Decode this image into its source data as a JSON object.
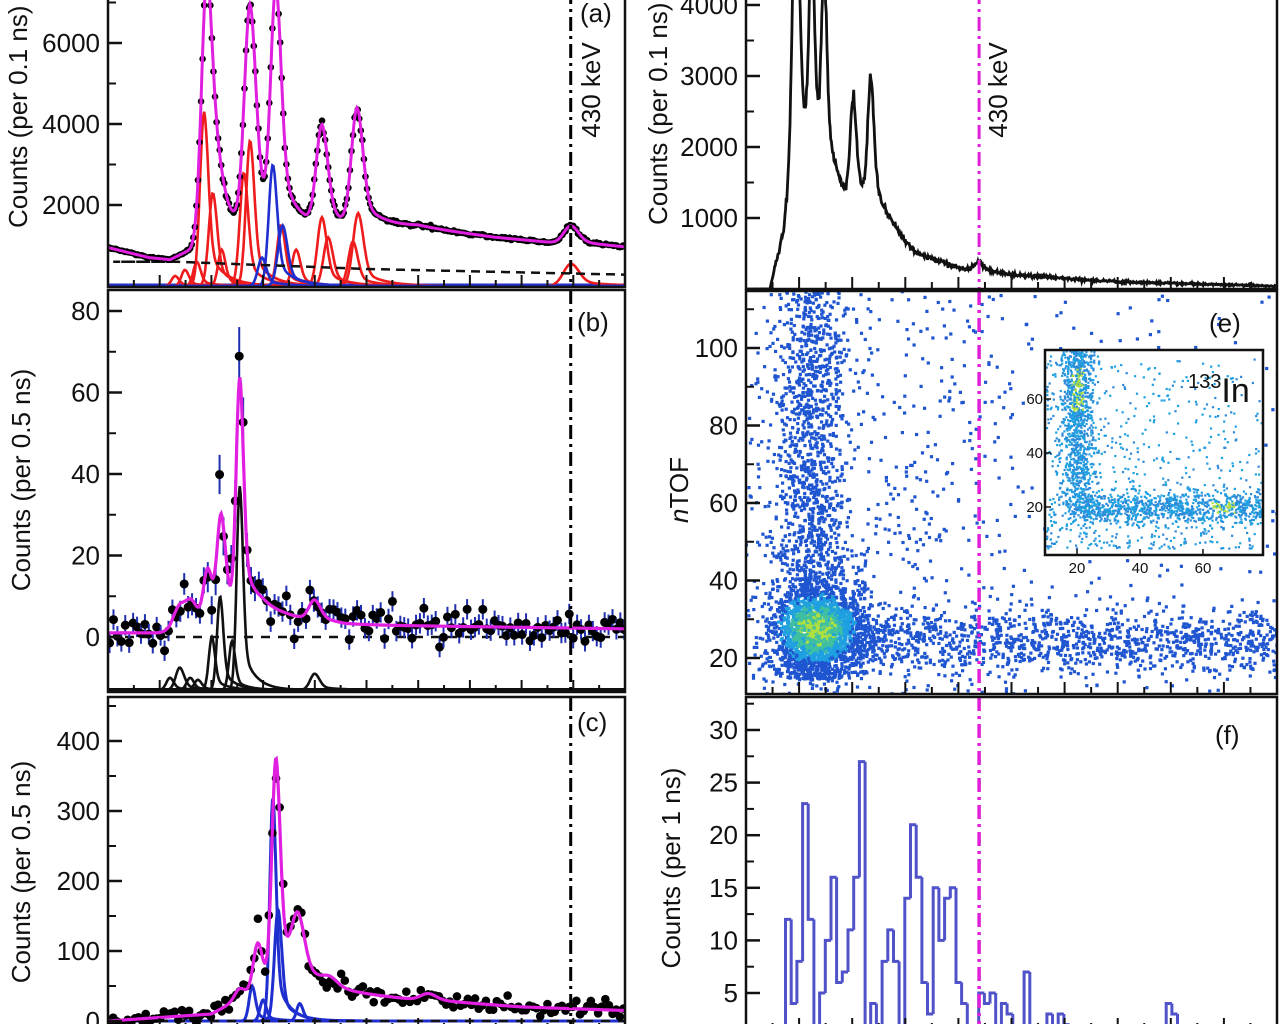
{
  "colors": {
    "fit": "#e01fe0",
    "component_red": "#ee1c1c",
    "component_blue": "#1f2fcf",
    "data_points": "#000000",
    "error_bars": "#1f2fb0",
    "histogram": "#4f52c8",
    "gate_line_left": "#000000",
    "gate_line_right": "#e01fd8",
    "scatter_low": "#1f55d0",
    "scatter_mid": "#1fa0e0",
    "scatter_high": "#3fc0a0",
    "scatter_peak": "#b0e040"
  },
  "chart_data": [
    {
      "panel": "a",
      "type": "line",
      "label": "(a)",
      "ylabel": "Counts (per 0.1 ns)",
      "yticks": [
        "2000",
        "4000",
        "6000"
      ],
      "ytick_values": [
        2000,
        4000,
        6000
      ],
      "annotation": "430 keV",
      "xlim": [
        0,
        100
      ],
      "ylim": [
        0,
        7100
      ],
      "gate_x": 89.5,
      "total_fit": {
        "background": [
          [
            0,
            950
          ],
          [
            8,
            700
          ],
          [
            12,
            650
          ],
          [
            16,
            900
          ],
          [
            17.5,
            1150
          ],
          [
            40,
            1250
          ],
          [
            60,
            1450
          ],
          [
            75,
            1200
          ],
          [
            88,
            1050
          ],
          [
            100,
            950
          ]
        ],
        "peaks": [
          [
            19.1,
            6200,
            1.0
          ],
          [
            27.5,
            5500,
            1.1
          ],
          [
            32.5,
            5700,
            1.0
          ],
          [
            41.4,
            2500,
            1.1
          ],
          [
            48.2,
            2900,
            1.1
          ],
          [
            89.6,
            450,
            1.4
          ],
          [
            21.0,
            1200,
            1.2
          ]
        ]
      },
      "components_red": [
        [
          13,
          250,
          0.7
        ],
        [
          14.9,
          400,
          0.7
        ],
        [
          17.2,
          600,
          0.7
        ],
        [
          18.6,
          4300,
          0.8
        ],
        [
          20.3,
          2300,
          0.8
        ],
        [
          22,
          900,
          0.7
        ],
        [
          26.3,
          2800,
          0.8
        ],
        [
          27.5,
          3600,
          0.8
        ],
        [
          33.5,
          1500,
          0.8
        ],
        [
          36.4,
          900,
          0.8
        ],
        [
          41.4,
          1700,
          0.9
        ],
        [
          42.6,
          1200,
          0.9
        ],
        [
          47.4,
          1100,
          0.9
        ],
        [
          48.4,
          1800,
          1.0
        ],
        [
          89.6,
          550,
          1.5
        ]
      ],
      "components_blue": [
        [
          29.8,
          700,
          0.8
        ],
        [
          31.9,
          3000,
          0.8
        ],
        [
          33.8,
          1500,
          0.9
        ]
      ],
      "background_dashed": [
        [
          13,
          600
        ],
        [
          50,
          420
        ],
        [
          100,
          280
        ]
      ]
    },
    {
      "panel": "b",
      "type": "scatter",
      "label": "(b)",
      "ylabel": "Counts (per 0.5 ns)",
      "yticks": [
        "0",
        "20",
        "40",
        "60",
        "80"
      ],
      "ytick_values": [
        0,
        20,
        40,
        60,
        80
      ],
      "xlim": [
        0,
        100
      ],
      "ylim": [
        -13,
        86
      ],
      "gate_x": 89.5,
      "total_fit": {
        "background": [
          [
            0,
            1
          ],
          [
            12,
            1
          ],
          [
            14,
            3
          ],
          [
            20,
            4
          ],
          [
            30,
            6
          ],
          [
            40,
            4
          ],
          [
            46,
            3
          ],
          [
            100,
            2
          ]
        ],
        "peaks": [
          [
            13.9,
            5,
            1.4
          ],
          [
            16.2,
            4,
            1.0
          ],
          [
            19.3,
            12,
            0.8
          ],
          [
            21.9,
            24,
            0.8
          ],
          [
            25.5,
            56,
            0.7
          ],
          [
            40,
            5,
            1.1
          ]
        ]
      },
      "components_offset": -13,
      "components_black": [
        [
          12,
          3,
          0.7
        ],
        [
          13.9,
          5.5,
          0.8
        ],
        [
          15.9,
          3,
          0.7
        ],
        [
          17.4,
          2.5,
          0.7
        ],
        [
          20.1,
          13,
          0.6
        ],
        [
          21.7,
          23,
          0.6
        ],
        [
          24,
          12,
          0.6
        ],
        [
          25.5,
          50,
          0.6
        ],
        [
          40,
          4,
          0.9
        ]
      ]
    },
    {
      "panel": "c",
      "type": "scatter",
      "label": "(c)",
      "ylabel": "Counts (per 0.5 ns)",
      "yticks": [
        "0",
        "100",
        "200",
        "300",
        "400"
      ],
      "ytick_values": [
        0,
        100,
        200,
        300,
        400
      ],
      "xlim": [
        0,
        100
      ],
      "ylim": [
        0,
        470
      ],
      "gate_x": 89.5,
      "total_fit": {
        "background": [
          [
            0,
            0
          ],
          [
            10,
            5
          ],
          [
            20,
            10
          ],
          [
            25,
            30
          ],
          [
            35,
            55
          ],
          [
            45,
            40
          ],
          [
            60,
            30
          ],
          [
            80,
            20
          ],
          [
            100,
            15
          ]
        ],
        "peaks": [
          [
            25.5,
            15,
            1.0
          ],
          [
            29,
            70,
            0.9
          ],
          [
            32.5,
            320,
            0.8
          ],
          [
            36.8,
            80,
            1.2
          ],
          [
            43,
            12,
            1.5
          ],
          [
            62,
            10,
            1.5
          ]
        ]
      },
      "components_blue": [
        [
          27.9,
          50,
          0.6
        ],
        [
          30,
          30,
          0.6
        ],
        [
          31.9,
          320,
          0.6
        ],
        [
          32.9,
          160,
          0.7
        ],
        [
          37.1,
          25,
          0.6
        ]
      ]
    },
    {
      "panel": "d",
      "type": "line",
      "ylabel": "Counts (per 0.1 ns)",
      "yticks": [
        "1000",
        "2000",
        "3000",
        "4000"
      ],
      "ytick_values": [
        1000,
        2000,
        3000,
        4000
      ],
      "annotation": "430 keV",
      "xlim": [
        0,
        100
      ],
      "ylim": [
        0,
        4100
      ],
      "gate_x": 43.9,
      "spectrum": {
        "background": [
          [
            0,
            0
          ],
          [
            4.5,
            0
          ],
          [
            7,
            800
          ],
          [
            8.5,
            1800
          ],
          [
            12,
            2000
          ],
          [
            18,
            1300
          ],
          [
            24,
            1200
          ],
          [
            27,
            900
          ],
          [
            32,
            500
          ],
          [
            40,
            300
          ],
          [
            50,
            200
          ],
          [
            70,
            100
          ],
          [
            100,
            40
          ]
        ],
        "peaks": [
          [
            9.4,
            4200,
            0.6
          ],
          [
            12.4,
            2600,
            0.5
          ],
          [
            14.7,
            2500,
            0.5
          ],
          [
            20.2,
            1400,
            0.55
          ],
          [
            23.5,
            1700,
            0.55
          ],
          [
            43.9,
            120,
            0.8
          ]
        ]
      }
    },
    {
      "panel": "e",
      "type": "heatmap",
      "label": "(e)",
      "ylabel_prefix": "n",
      "ylabel_rest": "TOF",
      "yticks": [
        "20",
        "40",
        "60",
        "80",
        "100"
      ],
      "ytick_values": [
        20,
        40,
        60,
        80,
        100
      ],
      "xlim": [
        0,
        100
      ],
      "ylim": [
        10,
        115
      ],
      "gate_x": 43.9,
      "inset": {
        "label_mass": "133",
        "label_element": "In",
        "xticks": [
          "20",
          "40",
          "60"
        ],
        "xtick_values": [
          20,
          40,
          60
        ],
        "yticks": [
          "20",
          "40",
          "60"
        ],
        "ytick_values": [
          20,
          40,
          60
        ],
        "xlim": [
          10,
          79
        ],
        "ylim": [
          2,
          78
        ]
      }
    },
    {
      "panel": "f",
      "type": "bar",
      "label": "(f)",
      "ylabel": "Counts (per 1 ns)",
      "yticks": [
        "5",
        "10",
        "15",
        "20",
        "25",
        "30"
      ],
      "ytick_values": [
        5,
        10,
        15,
        20,
        25,
        30
      ],
      "xlim": [
        0,
        100
      ],
      "ylim": [
        -2.5,
        33
      ],
      "gate_x": 43.9,
      "histogram_start_x": 5.3,
      "bin_width_x": 1.07,
      "values": [
        1,
        1,
        12,
        4,
        8,
        23,
        12,
        0,
        5,
        10,
        16,
        6,
        7,
        11,
        16,
        27,
        0,
        4,
        0,
        8,
        11,
        8,
        1,
        14,
        21,
        16,
        6,
        3,
        15,
        10,
        14,
        15,
        6,
        4,
        0,
        0,
        5,
        4,
        5,
        1,
        4,
        3,
        1,
        1,
        7,
        1,
        1,
        1,
        3,
        1,
        3,
        2,
        1,
        1,
        0,
        0,
        0,
        0,
        0,
        1,
        1,
        1,
        1,
        0,
        0,
        0,
        0,
        0,
        0,
        4,
        3,
        1,
        0,
        0,
        0,
        1,
        1,
        1,
        0
      ]
    }
  ]
}
